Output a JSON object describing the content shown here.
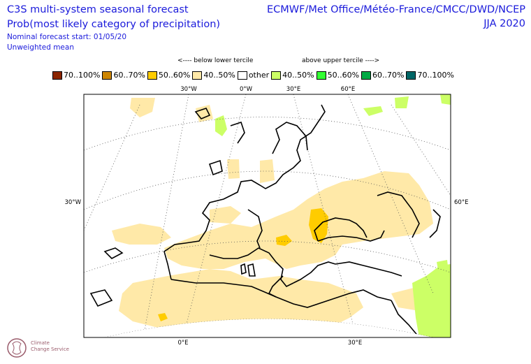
{
  "header": {
    "title_line1": "C3S multi-system seasonal forecast",
    "title_line2": "Prob(most likely category of precipitation)",
    "subtitle_line1": "Nominal forecast start: 01/05/20",
    "subtitle_line2": "Unweighted mean",
    "centres": "ECMWF/Met Office/Météo-France/CMCC/DWD/NCEP",
    "season": "JJA 2020"
  },
  "legend": {
    "below_label": "<---- below lower tercile",
    "above_label": "above upper tercile ---->",
    "items": [
      {
        "label": "70..100%",
        "color": "#8b2500"
      },
      {
        "label": "60..70%",
        "color": "#cd8500"
      },
      {
        "label": "50..60%",
        "color": "#ffcc00"
      },
      {
        "label": "40..50%",
        "color": "#ffe9a8"
      },
      {
        "label": "other",
        "color": "#ffffff"
      },
      {
        "label": "40..50%",
        "color": "#ccff66"
      },
      {
        "label": "50..60%",
        "color": "#33ff33"
      },
      {
        "label": "60..70%",
        "color": "#00aa44"
      },
      {
        "label": "70..100%",
        "color": "#006666"
      }
    ]
  },
  "axes": {
    "top_labels": [
      "30°W",
      "0°W",
      "30°E",
      "60°E"
    ],
    "left_label": "30°W",
    "right_label": "60°E",
    "bottom_labels": [
      "0°E",
      "30°E"
    ]
  },
  "colors": {
    "light_yellow": "#ffe9a8",
    "yellow": "#ffcc00",
    "light_green": "#ccff66",
    "text_blue": "#1a1adb"
  },
  "logo": {
    "line1": "Climate",
    "line2": "Change Service"
  }
}
